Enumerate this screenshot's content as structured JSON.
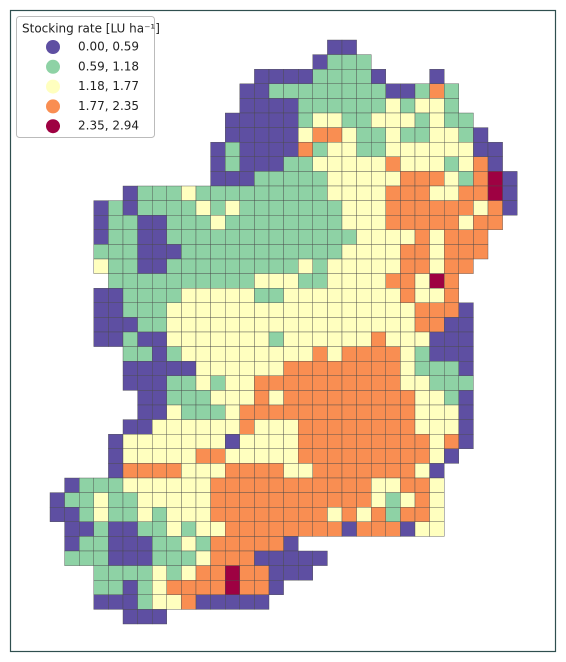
{
  "legend": {
    "title": "Stocking rate [LU ha⁻¹]",
    "classes": [
      {
        "label": "0.00, 0.59",
        "color": "#5e4fa2"
      },
      {
        "label": "0.59, 1.18",
        "color": "#8ed2a5"
      },
      {
        "label": "1.18, 1.77",
        "color": "#ffffbf"
      },
      {
        "label": "1.77, 2.35",
        "color": "#f98e52"
      },
      {
        "label": "2.35, 2.94",
        "color": "#9e0142"
      }
    ]
  },
  "map": {
    "cells": [
      [
        null,
        null,
        null,
        null,
        null,
        null,
        null,
        null,
        null,
        null,
        null,
        null,
        null,
        null,
        null,
        null,
        null,
        null,
        null,
        0,
        0
      ],
      [
        null,
        null,
        null,
        null,
        null,
        null,
        null,
        null,
        null,
        null,
        null,
        null,
        null,
        null,
        null,
        null,
        null,
        null,
        0,
        1,
        1,
        1
      ],
      [
        null,
        null,
        null,
        null,
        null,
        null,
        null,
        null,
        null,
        null,
        null,
        null,
        null,
        null,
        0,
        0,
        0,
        0,
        1,
        1,
        1,
        1,
        0,
        null,
        null,
        null,
        0
      ],
      [
        null,
        null,
        null,
        null,
        null,
        null,
        null,
        null,
        null,
        null,
        null,
        null,
        null,
        0,
        0,
        1,
        1,
        1,
        1,
        1,
        1,
        1,
        1,
        0,
        0,
        1,
        3,
        1
      ],
      [
        null,
        null,
        null,
        null,
        null,
        null,
        null,
        null,
        null,
        null,
        null,
        null,
        null,
        0,
        0,
        0,
        0,
        1,
        1,
        1,
        1,
        1,
        1,
        2,
        1,
        2,
        2,
        1
      ],
      [
        null,
        null,
        null,
        null,
        null,
        null,
        null,
        null,
        null,
        null,
        null,
        null,
        0,
        0,
        0,
        0,
        0,
        1,
        2,
        2,
        1,
        1,
        2,
        2,
        2,
        1,
        2,
        1,
        1
      ],
      [
        null,
        null,
        null,
        null,
        null,
        null,
        null,
        null,
        null,
        null,
        null,
        null,
        0,
        0,
        0,
        0,
        0,
        2,
        3,
        3,
        2,
        1,
        1,
        2,
        1,
        1,
        2,
        2,
        1,
        0
      ],
      [
        null,
        null,
        null,
        null,
        null,
        null,
        null,
        null,
        null,
        null,
        null,
        0,
        1,
        0,
        0,
        0,
        0,
        3,
        1,
        2,
        2,
        1,
        1,
        2,
        2,
        2,
        2,
        2,
        2,
        0,
        0
      ],
      [
        null,
        null,
        null,
        null,
        null,
        null,
        null,
        null,
        null,
        null,
        null,
        0,
        1,
        0,
        0,
        0,
        1,
        1,
        2,
        2,
        2,
        2,
        2,
        3,
        2,
        2,
        2,
        1,
        2,
        3,
        0
      ],
      [
        null,
        null,
        null,
        null,
        null,
        null,
        null,
        null,
        null,
        null,
        null,
        0,
        0,
        0,
        1,
        1,
        1,
        1,
        1,
        2,
        2,
        2,
        2,
        2,
        3,
        3,
        3,
        2,
        1,
        3,
        4,
        0
      ],
      [
        null,
        null,
        null,
        null,
        null,
        0,
        1,
        1,
        1,
        2,
        1,
        1,
        1,
        1,
        1,
        1,
        1,
        1,
        1,
        2,
        2,
        2,
        2,
        3,
        3,
        3,
        2,
        2,
        3,
        3,
        4,
        0
      ],
      [
        null,
        null,
        null,
        0,
        1,
        0,
        1,
        1,
        1,
        1,
        2,
        1,
        2,
        1,
        1,
        1,
        1,
        1,
        1,
        1,
        2,
        2,
        2,
        3,
        3,
        3,
        3,
        3,
        3,
        2,
        3,
        0
      ],
      [
        null,
        null,
        null,
        0,
        1,
        1,
        0,
        0,
        1,
        1,
        1,
        2,
        1,
        1,
        1,
        1,
        1,
        1,
        1,
        1,
        2,
        2,
        2,
        3,
        3,
        3,
        3,
        3,
        2,
        3,
        3
      ],
      [
        null,
        null,
        null,
        0,
        1,
        1,
        0,
        0,
        1,
        1,
        1,
        1,
        1,
        1,
        1,
        1,
        1,
        1,
        1,
        1,
        1,
        2,
        2,
        2,
        2,
        3,
        2,
        3,
        3,
        3
      ],
      [
        null,
        null,
        null,
        1,
        1,
        1,
        0,
        0,
        0,
        1,
        1,
        1,
        1,
        1,
        1,
        1,
        1,
        1,
        1,
        1,
        2,
        2,
        2,
        2,
        3,
        3,
        2,
        3,
        3,
        3
      ],
      [
        null,
        null,
        null,
        2,
        1,
        1,
        0,
        0,
        1,
        1,
        1,
        1,
        1,
        1,
        1,
        1,
        1,
        2,
        1,
        2,
        2,
        2,
        2,
        2,
        3,
        3,
        2,
        3,
        3
      ],
      [
        null,
        null,
        null,
        null,
        1,
        1,
        1,
        1,
        1,
        1,
        1,
        1,
        1,
        1,
        2,
        2,
        2,
        1,
        1,
        2,
        2,
        2,
        2,
        3,
        3,
        2,
        4,
        3
      ],
      [
        null,
        null,
        null,
        0,
        0,
        1,
        1,
        1,
        1,
        2,
        2,
        2,
        2,
        2,
        1,
        1,
        2,
        2,
        2,
        2,
        2,
        2,
        2,
        2,
        3,
        2,
        2,
        3
      ],
      [
        null,
        null,
        null,
        0,
        0,
        1,
        1,
        1,
        2,
        2,
        2,
        2,
        2,
        2,
        2,
        2,
        2,
        2,
        2,
        2,
        2,
        2,
        2,
        2,
        2,
        3,
        3,
        3,
        0
      ],
      [
        null,
        null,
        null,
        0,
        0,
        0,
        1,
        1,
        2,
        2,
        2,
        2,
        2,
        2,
        2,
        2,
        2,
        2,
        2,
        2,
        2,
        2,
        2,
        2,
        2,
        3,
        3,
        0,
        0
      ],
      [
        null,
        null,
        null,
        0,
        0,
        1,
        0,
        0,
        2,
        2,
        2,
        2,
        2,
        2,
        2,
        1,
        2,
        2,
        2,
        2,
        2,
        2,
        3,
        2,
        2,
        2,
        0,
        0,
        0
      ],
      [
        null,
        null,
        null,
        null,
        null,
        1,
        1,
        0,
        1,
        2,
        2,
        2,
        2,
        2,
        2,
        2,
        2,
        2,
        3,
        2,
        3,
        3,
        3,
        3,
        2,
        1,
        0,
        0,
        0
      ],
      [
        null,
        null,
        null,
        null,
        null,
        0,
        0,
        0,
        0,
        0,
        2,
        2,
        2,
        2,
        2,
        2,
        3,
        3,
        3,
        3,
        3,
        3,
        3,
        3,
        2,
        1,
        1,
        1,
        0
      ],
      [
        null,
        null,
        null,
        null,
        null,
        0,
        0,
        0,
        1,
        1,
        2,
        1,
        2,
        2,
        3,
        3,
        3,
        3,
        3,
        3,
        3,
        3,
        3,
        3,
        2,
        2,
        1,
        1,
        1
      ],
      [
        null,
        null,
        null,
        null,
        null,
        null,
        0,
        0,
        1,
        1,
        1,
        2,
        2,
        2,
        3,
        2,
        3,
        3,
        3,
        3,
        3,
        3,
        3,
        3,
        3,
        2,
        2,
        1,
        0
      ],
      [
        null,
        null,
        null,
        null,
        null,
        null,
        0,
        0,
        2,
        1,
        1,
        1,
        2,
        3,
        3,
        3,
        3,
        3,
        3,
        3,
        3,
        3,
        3,
        3,
        3,
        2,
        2,
        2,
        0
      ],
      [
        null,
        null,
        null,
        null,
        null,
        0,
        0,
        2,
        2,
        2,
        2,
        2,
        2,
        3,
        2,
        2,
        2,
        3,
        3,
        3,
        3,
        3,
        3,
        3,
        3,
        2,
        2,
        2,
        0
      ],
      [
        null,
        null,
        null,
        null,
        0,
        2,
        2,
        2,
        2,
        2,
        2,
        2,
        0,
        2,
        2,
        2,
        2,
        3,
        3,
        3,
        3,
        3,
        3,
        3,
        3,
        3,
        2,
        3,
        0
      ],
      [
        null,
        null,
        null,
        null,
        0,
        2,
        2,
        2,
        2,
        2,
        3,
        3,
        2,
        2,
        2,
        2,
        2,
        3,
        3,
        3,
        3,
        3,
        3,
        3,
        3,
        3,
        2,
        0
      ],
      [
        null,
        null,
        null,
        null,
        0,
        3,
        3,
        3,
        3,
        2,
        2,
        2,
        3,
        3,
        3,
        3,
        2,
        2,
        3,
        3,
        3,
        3,
        3,
        3,
        3,
        2,
        0
      ],
      [
        null,
        0,
        1,
        1,
        1,
        2,
        2,
        2,
        2,
        2,
        2,
        3,
        3,
        3,
        3,
        3,
        3,
        3,
        3,
        3,
        3,
        3,
        2,
        2,
        3,
        3,
        2
      ],
      [
        0,
        1,
        1,
        2,
        1,
        1,
        2,
        2,
        2,
        2,
        2,
        3,
        3,
        3,
        3,
        3,
        3,
        3,
        3,
        3,
        3,
        3,
        2,
        1,
        2,
        3,
        2
      ],
      [
        0,
        0,
        1,
        2,
        1,
        1,
        2,
        1,
        2,
        2,
        2,
        3,
        3,
        3,
        3,
        3,
        3,
        3,
        3,
        2,
        3,
        2,
        3,
        1,
        3,
        3,
        2
      ],
      [
        null,
        0,
        0,
        1,
        0,
        0,
        1,
        1,
        2,
        1,
        2,
        2,
        3,
        3,
        3,
        3,
        3,
        3,
        3,
        3,
        0,
        3,
        3,
        3,
        0,
        2,
        2
      ],
      [
        null,
        0,
        1,
        1,
        0,
        0,
        0,
        1,
        1,
        2,
        1,
        3,
        3,
        3,
        3,
        3,
        0
      ],
      [
        null,
        1,
        1,
        1,
        0,
        0,
        0,
        1,
        1,
        1,
        2,
        3,
        3,
        3,
        0,
        0,
        0,
        0,
        0
      ],
      [
        null,
        null,
        null,
        1,
        1,
        1,
        1,
        2,
        1,
        2,
        3,
        3,
        4,
        3,
        3,
        0,
        0,
        0
      ],
      [
        null,
        null,
        null,
        1,
        1,
        0,
        1,
        2,
        3,
        3,
        3,
        3,
        4,
        3,
        3,
        0
      ],
      [
        null,
        null,
        null,
        0,
        0,
        0,
        1,
        2,
        2,
        3,
        0,
        0,
        0,
        0,
        0
      ],
      [
        null,
        null,
        null,
        null,
        null,
        0,
        0,
        0
      ]
    ]
  }
}
